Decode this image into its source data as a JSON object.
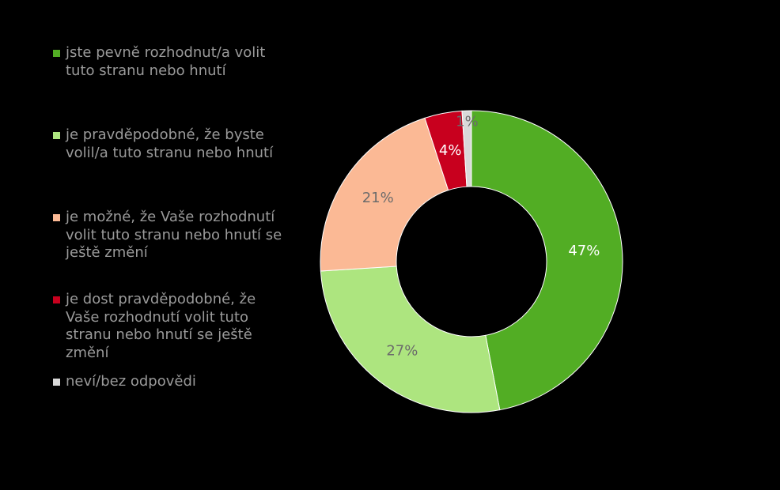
{
  "chart_data": {
    "type": "pie",
    "donut": true,
    "legend_position": "left",
    "start": "top",
    "direction": "clockwise",
    "slices": [
      {
        "label": "jste pevně rozhodnut/a volit\ntuto stranu nebo hnutí",
        "value": 47,
        "value_label": "47%",
        "color": "#52ad24",
        "label_color": "#ffffff"
      },
      {
        "label": "je pravděpodobné, že byste\nvolil/a tuto stranu nebo hnutí",
        "value": 27,
        "value_label": "27%",
        "color": "#ade57f",
        "label_color": "#6b6b6b"
      },
      {
        "label": "je možné, že Vaše rozhodnutí\nvolit tuto stranu nebo hnutí se\nještě změní",
        "value": 21,
        "value_label": "21%",
        "color": "#fbb995",
        "label_color": "#6b6b6b"
      },
      {
        "label": "je dost pravděpodobné, že\nVaše rozhodnutí volit tuto\nstranu nebo hnutí se ještě\nzmění",
        "value": 4,
        "value_label": "4%",
        "color": "#c8001e",
        "label_color": "#ffffff"
      },
      {
        "label": "neví/bez odpovědi",
        "value": 1,
        "value_label": "1%",
        "color": "#d9d9d9",
        "label_color": "#6b6b6b"
      }
    ]
  }
}
